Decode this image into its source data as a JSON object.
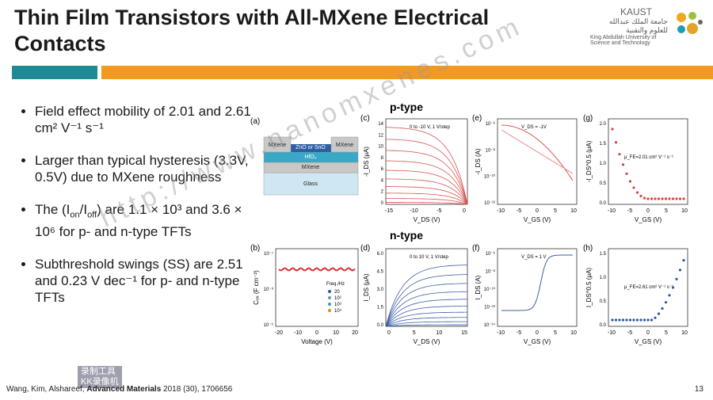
{
  "header": {
    "title_lines": [
      "Thin Film Transistors with All-MXene Electrical",
      "Contacts"
    ]
  },
  "logo": {
    "name": "KAUST",
    "arabic": [
      "جامعة الملك عبدالله",
      "للعلوم والتقنية"
    ],
    "english": [
      "King Abdullah University of",
      "Science and Technology"
    ]
  },
  "bullets": [
    [
      "Field effect mobility of 2.01 and 2.61 cm² V⁻¹ s⁻¹"
    ],
    [
      "Larger than typical hysteresis (3.3V, 0.5V) due to MXene roughness"
    ],
    [
      "The  (I",
      {
        "sub": "on"
      },
      "/I",
      {
        "sub": "off"
      },
      ") are 1.1 × 10³ and 3.6 × 10⁶ for p- and n-type TFTs"
    ],
    [
      "Subthreshold swings (SS) are 2.51 and 0.23 V dec⁻¹ for p- and n-type TFTs"
    ]
  ],
  "figure": {
    "row_labels": [
      "p-type",
      "n-type"
    ],
    "device": {
      "label": "(a)",
      "layers": [
        "MXene",
        "ZnO or SnO",
        "MXene",
        "HfO₂",
        "MXene",
        "Glass"
      ]
    },
    "panels": [
      {
        "label": "(b)",
        "ylabel": "Cₒₓ (F cm⁻²)",
        "xlabel": "Voltage (V)",
        "xticks": [
          "-20",
          "-10",
          "0",
          "10",
          "20"
        ],
        "yticks": [
          "10⁻⁷",
          "10⁻⁸",
          "10⁻⁹"
        ],
        "legend_title": "Freq./Hz",
        "legend": [
          "20",
          "10²",
          "10³",
          "10⁴"
        ]
      },
      {
        "label": "(c)",
        "ylabel": "-I_DS (μA)",
        "xlabel": "V_DS (V)",
        "xticks": [
          "-15",
          "-10",
          "-5",
          "0"
        ],
        "yticks": [
          "14",
          "12",
          "10",
          "8",
          "6",
          "4",
          "2",
          "0"
        ],
        "note": "0 to -10 V, 1 V/step"
      },
      {
        "label": "(d)",
        "ylabel": "I_DS (μA)",
        "xlabel": "V_DS (V)",
        "xticks": [
          "0",
          "5",
          "10",
          "15"
        ],
        "yticks": [
          "6.0",
          "4.5",
          "3.0",
          "1.5",
          "0.0"
        ],
        "note": "0 to 10 V, 1 V/step"
      },
      {
        "label": "(e)",
        "ylabel": "-I_DS (A)",
        "xlabel": "V_GS (V)",
        "xticks": [
          "-10",
          "-5",
          "0",
          "5",
          "10"
        ],
        "yticks": [
          "10⁻⁶",
          "10⁻⁸",
          "10⁻¹⁰",
          "10⁻¹²"
        ],
        "note": "V_DS = -1V"
      },
      {
        "label": "(f)",
        "ylabel": "I_DS (A)",
        "xlabel": "V_GS (V)",
        "xticks": [
          "-10",
          "-5",
          "0",
          "5",
          "10"
        ],
        "yticks": [
          "10⁻⁶",
          "10⁻⁸",
          "10⁻¹⁰",
          "10⁻¹²",
          "10⁻¹⁴"
        ],
        "note": "V_DS = 1 V"
      },
      {
        "label": "(g)",
        "ylabel": "-I_DS^0.5 (μA)",
        "xlabel": "V_GS (V)",
        "xticks": [
          "-10",
          "-5",
          "0",
          "5",
          "10"
        ],
        "yticks": [
          "2.0",
          "1.5",
          "1.0",
          "0.5",
          "0.0"
        ],
        "note": "μ_FE=2.01 cm² V⁻¹ s⁻¹"
      },
      {
        "label": "(h)",
        "ylabel": "I_DS^0.5 (μA)",
        "xlabel": "V_GS (V)",
        "xticks": [
          "-10",
          "-5",
          "0",
          "5",
          "10"
        ],
        "yticks": [
          "1.5",
          "1.0",
          "0.5",
          "0.0"
        ],
        "note": "μ_FE=2.61 cm² V⁻¹ s⁻¹"
      }
    ]
  },
  "footer": {
    "citation_start": "Wang, Kim, Alshareef, ",
    "journal": "Advanced Materials",
    "citation_end": " 2018 (30), 1706656",
    "page": "13"
  },
  "watermark": "http://www.nanomxenes.com",
  "recorder": [
    "录制工具",
    "KK录像机"
  ]
}
